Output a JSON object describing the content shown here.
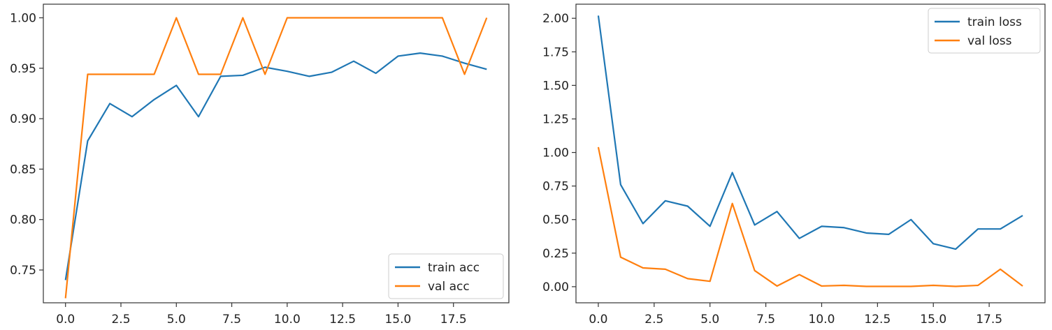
{
  "chart_data": [
    {
      "type": "line",
      "title": "",
      "xlabel": "",
      "ylabel": "",
      "xlim": [
        -1,
        20
      ],
      "ylim": [
        0.7175,
        1.0135
      ],
      "xticks": [
        0,
        2.5,
        5,
        7.5,
        10,
        12.5,
        15,
        17.5
      ],
      "xtick_labels": [
        "0.0",
        "2.5",
        "5.0",
        "7.5",
        "10.0",
        "12.5",
        "15.0",
        "17.5"
      ],
      "yticks": [
        0.75,
        0.8,
        0.85,
        0.9,
        0.95,
        1.0
      ],
      "ytick_labels": [
        "0.75",
        "0.80",
        "0.85",
        "0.90",
        "0.95",
        "1.00"
      ],
      "legend_position": "lower-right",
      "grid": false,
      "x": [
        0,
        1,
        2,
        3,
        4,
        5,
        6,
        7,
        8,
        9,
        10,
        11,
        12,
        13,
        14,
        15,
        16,
        17,
        18,
        19
      ],
      "series": [
        {
          "name": "train acc",
          "color": "#1f77b4",
          "values": [
            0.74,
            0.878,
            0.915,
            0.902,
            0.919,
            0.933,
            0.902,
            0.942,
            0.943,
            0.951,
            0.947,
            0.942,
            0.946,
            0.957,
            0.945,
            0.962,
            0.965,
            0.962,
            0.955,
            0.949
          ]
        },
        {
          "name": "val acc",
          "color": "#ff7f0e",
          "values": [
            0.722,
            0.944,
            0.944,
            0.944,
            0.944,
            1.0,
            0.944,
            0.944,
            1.0,
            0.944,
            1.0,
            1.0,
            1.0,
            1.0,
            1.0,
            1.0,
            1.0,
            1.0,
            0.944,
            1.0
          ]
        }
      ]
    },
    {
      "type": "line",
      "title": "",
      "xlabel": "",
      "ylabel": "",
      "xlim": [
        -1,
        20
      ],
      "ylim": [
        -0.12,
        2.105
      ],
      "xticks": [
        0,
        2.5,
        5,
        7.5,
        10,
        12.5,
        15,
        17.5
      ],
      "xtick_labels": [
        "0.0",
        "2.5",
        "5.0",
        "7.5",
        "10.0",
        "12.5",
        "15.0",
        "17.5"
      ],
      "yticks": [
        0,
        0.25,
        0.5,
        0.75,
        1.0,
        1.25,
        1.5,
        1.75,
        2.0
      ],
      "ytick_labels": [
        "0.00",
        "0.25",
        "0.50",
        "0.75",
        "1.00",
        "1.25",
        "1.50",
        "1.75",
        "2.00"
      ],
      "legend_position": "upper-right",
      "grid": false,
      "x": [
        0,
        1,
        2,
        3,
        4,
        5,
        6,
        7,
        8,
        9,
        10,
        11,
        12,
        13,
        14,
        15,
        16,
        17,
        18,
        19
      ],
      "series": [
        {
          "name": "train loss",
          "color": "#1f77b4",
          "values": [
            2.02,
            0.76,
            0.47,
            0.64,
            0.6,
            0.45,
            0.85,
            0.46,
            0.56,
            0.36,
            0.45,
            0.44,
            0.4,
            0.39,
            0.5,
            0.32,
            0.28,
            0.43,
            0.43,
            0.53
          ]
        },
        {
          "name": "val loss",
          "color": "#ff7f0e",
          "values": [
            1.04,
            0.22,
            0.14,
            0.13,
            0.06,
            0.04,
            0.62,
            0.12,
            0.005,
            0.09,
            0.005,
            0.01,
            0.002,
            0.002,
            0.002,
            0.01,
            0.002,
            0.01,
            0.13,
            0.005
          ]
        }
      ]
    }
  ]
}
